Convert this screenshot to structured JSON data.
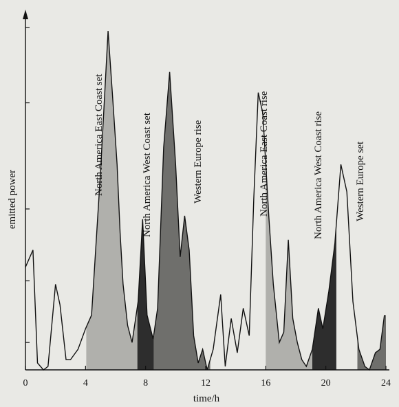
{
  "chart_data": {
    "type": "area",
    "xlabel": "time/h",
    "ylabel": "emitted power",
    "xlim": [
      0,
      24
    ],
    "ylim": [
      0,
      10
    ],
    "xticks": [
      "0",
      "4",
      "8",
      "12",
      "16",
      "20",
      "24"
    ],
    "series": [
      {
        "x": [
          0,
          0.5,
          0.8,
          1.2,
          1.5,
          2.0,
          2.3,
          2.7,
          3.0,
          3.5,
          4.0,
          4.4,
          5.0,
          5.5,
          5.8,
          6.1,
          6.3,
          6.5,
          6.8,
          7.1,
          7.5,
          7.8,
          8.1,
          8.5,
          8.8,
          9.2,
          9.6,
          10.0,
          10.3,
          10.6,
          10.9,
          11.2,
          11.5,
          11.8,
          12.1,
          12.5,
          13.0,
          13.3,
          13.7,
          14.1,
          14.5,
          14.9,
          15.2,
          15.5,
          15.8,
          16.2,
          16.5,
          16.9,
          17.2,
          17.5,
          17.8,
          18.1,
          18.4,
          18.7,
          19.1,
          19.5,
          19.8,
          20.2,
          20.6,
          21.0,
          21.4,
          21.8,
          22.2,
          22.6,
          22.9,
          23.3,
          23.6,
          23.9
        ],
        "values": [
          3.0,
          3.5,
          0.2,
          0.0,
          0.1,
          2.5,
          1.9,
          0.3,
          0.3,
          0.6,
          1.2,
          1.6,
          5.8,
          9.9,
          8.0,
          6.0,
          4.0,
          2.5,
          1.3,
          0.8,
          2.0,
          4.4,
          1.6,
          0.9,
          1.8,
          6.5,
          8.7,
          6.0,
          3.3,
          4.5,
          3.5,
          1.0,
          0.2,
          0.6,
          0.0,
          0.6,
          2.2,
          0.1,
          1.5,
          0.5,
          1.8,
          1.0,
          5.0,
          8.1,
          7.5,
          4.5,
          2.5,
          0.8,
          1.1,
          3.8,
          1.5,
          0.8,
          0.3,
          0.1,
          0.6,
          1.8,
          1.2,
          2.3,
          3.7,
          6.0,
          5.2,
          2.0,
          0.6,
          0.1,
          0.0,
          0.5,
          0.6,
          1.6
        ]
      }
    ],
    "colors": {
      "light_region": "#b0b0ac",
      "mid_region": "#6f6f6c",
      "dark_region": "#2d2d2d",
      "line": "#111111"
    },
    "annotations": [
      "North America East Coast set",
      "North America West Coast set",
      "Western Europe rise",
      "North America East Coast rise",
      "North America West Coast rise",
      "Western Europe set"
    ]
  }
}
